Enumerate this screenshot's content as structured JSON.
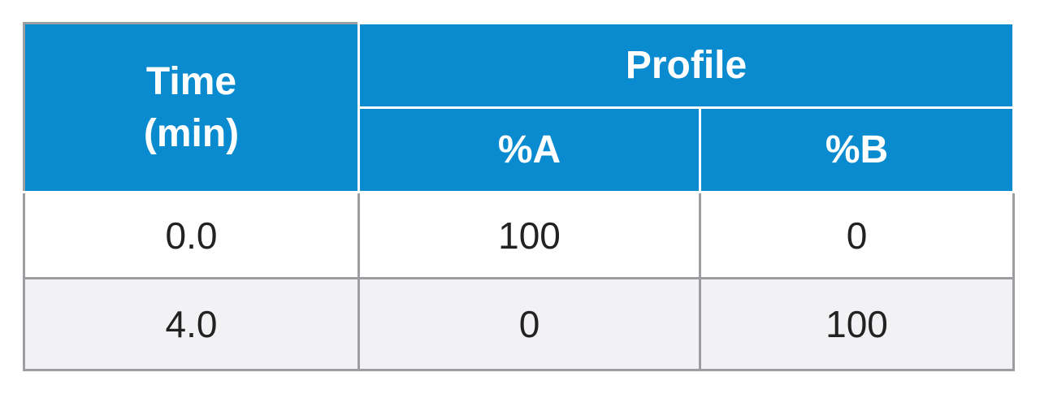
{
  "table": {
    "header": {
      "time": "Time (min)",
      "profile": "Profile",
      "columns": [
        "%A",
        "%B"
      ]
    },
    "rows": [
      [
        "0.0",
        "100",
        "0"
      ],
      [
        "4.0",
        "0",
        "100"
      ]
    ]
  }
}
